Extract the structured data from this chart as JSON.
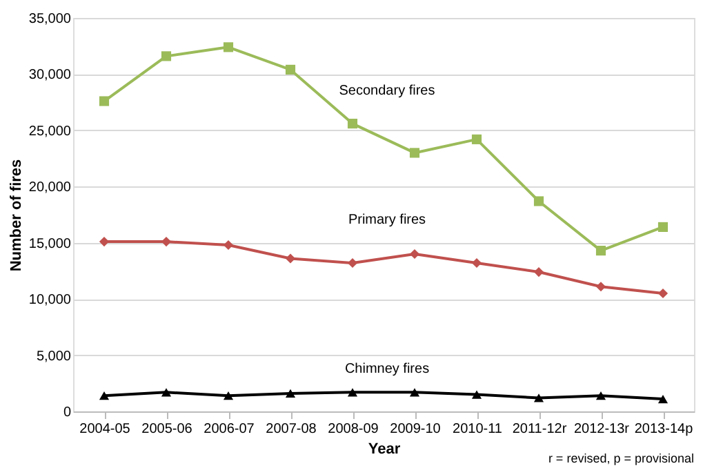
{
  "chart_data": {
    "type": "line",
    "xlabel": "Year",
    "ylabel": "Number of fires",
    "categories": [
      "2004-05",
      "2005-06",
      "2006-07",
      "2007-08",
      "2008-09",
      "2009-10",
      "2010-11",
      "2011-12r",
      "2012-13r",
      "2013-14p"
    ],
    "series": [
      {
        "name": "Secondary fires",
        "color": "#9bbb59",
        "marker": "square",
        "values": [
          27600,
          31600,
          32400,
          30400,
          25600,
          23000,
          24200,
          18700,
          14300,
          16400
        ]
      },
      {
        "name": "Primary fires",
        "color": "#c0504d",
        "marker": "diamond",
        "values": [
          15100,
          15100,
          14800,
          13600,
          13200,
          14000,
          13200,
          12400,
          11100,
          10500
        ]
      },
      {
        "name": "Chimney fires",
        "color": "#000000",
        "marker": "triangle",
        "values": [
          1400,
          1700,
          1400,
          1600,
          1700,
          1700,
          1500,
          1200,
          1400,
          1100
        ]
      }
    ],
    "ylim": [
      0,
      35000
    ],
    "yticks": [
      0,
      {
        "value": 5000,
        "label": "5,000"
      },
      {
        "value": 10000,
        "label": "10,000"
      },
      {
        "value": 15000,
        "label": "15,000"
      },
      {
        "value": 20000,
        "label": "20,000"
      },
      {
        "value": 25000,
        "label": "25,000"
      },
      {
        "value": 30000,
        "label": "30,000"
      },
      {
        "value": 35000,
        "label": "35,000"
      }
    ],
    "grid": "y",
    "legend": false,
    "line_style": "solid",
    "annotations": [
      "r = revised, p = provisional"
    ]
  }
}
